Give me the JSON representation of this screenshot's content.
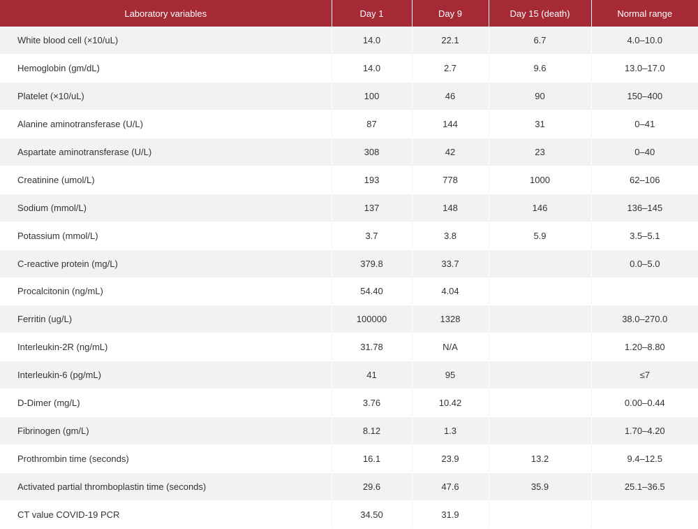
{
  "table": {
    "header_color": "#a52a36",
    "columns": [
      "Laboratory variables",
      "Day 1",
      "Day 9",
      "Day 15 (death)",
      "Normal range"
    ],
    "rows": [
      [
        "White blood cell (×10/uL)",
        "14.0",
        "22.1",
        "6.7",
        "4.0–10.0"
      ],
      [
        "Hemoglobin (gm/dL)",
        "14.0",
        "2.7",
        "9.6",
        "13.0–17.0"
      ],
      [
        "Platelet (×10/uL)",
        "100",
        "46",
        "90",
        "150–400"
      ],
      [
        "Alanine aminotransferase (U/L)",
        "87",
        "144",
        "31",
        "0–41"
      ],
      [
        "Aspartate aminotransferase (U/L)",
        "308",
        "42",
        "23",
        "0–40"
      ],
      [
        "Creatinine (umol/L)",
        "193",
        "778",
        "1000",
        "62–106"
      ],
      [
        "Sodium (mmol/L)",
        "137",
        "148",
        "146",
        "136–145"
      ],
      [
        "Potassium (mmol/L)",
        "3.7",
        "3.8",
        "5.9",
        "3.5–5.1"
      ],
      [
        "C-reactive protein (mg/L)",
        "379.8",
        "33.7",
        "",
        "0.0–5.0"
      ],
      [
        "Procalcitonin (ng/mL)",
        "54.40",
        "4.04",
        "",
        ""
      ],
      [
        "Ferritin (ug/L)",
        "100000",
        "1328",
        "",
        "38.0–270.0"
      ],
      [
        "Interleukin-2R (ng/mL)",
        "31.78",
        "N/A",
        "",
        "1.20–8.80"
      ],
      [
        "Interleukin-6 (pg/mL)",
        "41",
        "95",
        "",
        "≤7"
      ],
      [
        "D-Dimer (mg/L)",
        "3.76",
        "10.42",
        "",
        "0.00–0.44"
      ],
      [
        "Fibrinogen (gm/L)",
        "8.12",
        "1.3",
        "",
        "1.70–4.20"
      ],
      [
        "Prothrombin time (seconds)",
        "16.1",
        "23.9",
        "13.2",
        "9.4–12.5"
      ],
      [
        "Activated partial thromboplastin time (seconds)",
        "29.6",
        "47.6",
        "35.9",
        "25.1–36.5"
      ],
      [
        "CT value COVID-19 PCR",
        "34.50",
        "31.9",
        "",
        ""
      ]
    ]
  }
}
